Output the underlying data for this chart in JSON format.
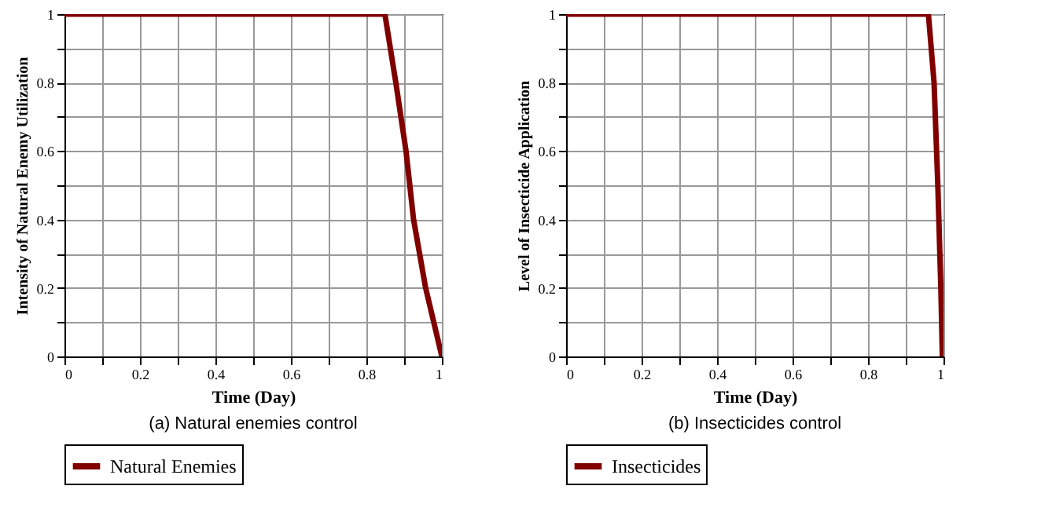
{
  "chart_data": [
    {
      "type": "line",
      "xlabel": "Time (Day)",
      "ylabel": "Intensity of Natural Enemy Utilization",
      "annotations": [
        "(a) Natural enemies control"
      ],
      "series": [
        {
          "name": "Natural Enemies",
          "color": "#800000",
          "x": [
            0,
            0.849,
            0.878,
            0.905,
            0.925,
            0.957,
            1
          ],
          "values": [
            1,
            1,
            0.8,
            0.6,
            0.4,
            0.2,
            0
          ]
        }
      ],
      "xlim": [
        0,
        1
      ],
      "ylim": [
        0,
        1
      ],
      "xticks": [
        0,
        {
          "value": 0.1,
          "label": null
        },
        0.2,
        {
          "value": 0.3,
          "label": null
        },
        0.4,
        {
          "value": 0.5,
          "label": null
        },
        0.6,
        {
          "value": 0.7,
          "label": null
        },
        0.8,
        {
          "value": 0.9,
          "label": null
        },
        1
      ],
      "yticks": [
        0,
        {
          "value": 0.1,
          "label": null
        },
        0.2,
        {
          "value": 0.3,
          "label": null
        },
        0.4,
        {
          "value": 0.5,
          "label": null
        },
        0.6,
        {
          "value": 0.7,
          "label": null
        },
        0.8,
        {
          "value": 0.9,
          "label": null
        },
        1
      ],
      "grid": true,
      "legend": "bottom",
      "line_style": "solid"
    },
    {
      "type": "line",
      "xlabel": "Time (Day)",
      "ylabel": "Level of Insecticide Application",
      "annotations": [
        "(b) Insecticides control"
      ],
      "series": [
        {
          "name": "Insecticides",
          "color": "#800000",
          "x": [
            0,
            0.96,
            0.975,
            0.985,
            0.993,
            0.997
          ],
          "values": [
            1,
            1,
            0.8,
            0.5,
            0.2,
            0
          ]
        }
      ],
      "xlim": [
        0,
        1
      ],
      "ylim": [
        0,
        1
      ],
      "xticks": [
        0,
        {
          "value": 0.1,
          "label": null
        },
        0.2,
        {
          "value": 0.3,
          "label": null
        },
        0.4,
        {
          "value": 0.5,
          "label": null
        },
        0.6,
        {
          "value": 0.7,
          "label": null
        },
        0.8,
        {
          "value": 0.9,
          "label": null
        },
        1
      ],
      "yticks": [
        0,
        {
          "value": 0.1,
          "label": null
        },
        0.2,
        {
          "value": 0.3,
          "label": null
        },
        0.4,
        {
          "value": 0.5,
          "label": null
        },
        0.6,
        {
          "value": 0.7,
          "label": null
        },
        0.8,
        {
          "value": 0.9,
          "label": null
        },
        1
      ],
      "grid": true,
      "legend": "bottom",
      "line_style": "solid"
    }
  ]
}
